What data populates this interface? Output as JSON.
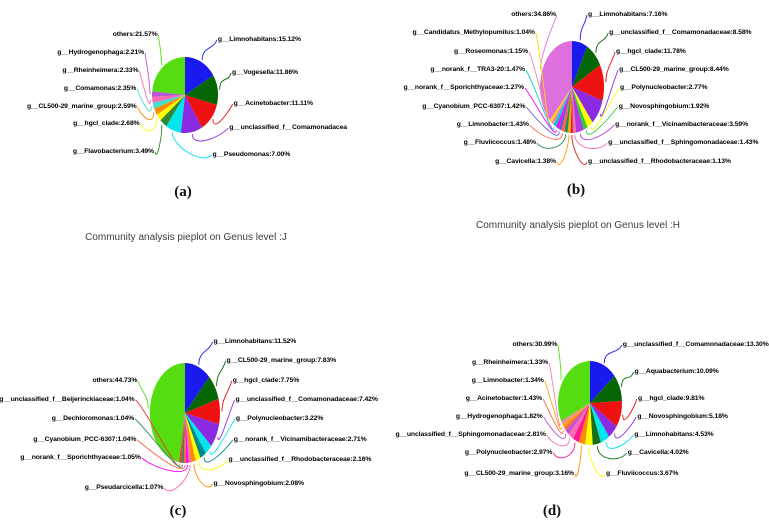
{
  "chart_data": [
    {
      "type": "pie",
      "panel": "a",
      "caption": "(a)",
      "subtitle": "Community analysis pieplot on Genus level :J",
      "slices": [
        {
          "name": "g__Limnohabitans",
          "label": "g__Limnohabitans:15.12%",
          "value": 15.12,
          "color": "#1a1aee",
          "side": "right"
        },
        {
          "name": "g__Vogesella",
          "label": "g__Vogesella:11.86%",
          "value": 11.86,
          "color": "#066606",
          "side": "right"
        },
        {
          "name": "g__Acinetobacter",
          "label": "g__Acinetobacter:11.11%",
          "value": 11.11,
          "color": "#ee1111",
          "side": "right"
        },
        {
          "name": "g__unclassified_f__Comamonadacea",
          "label": "g__unclassified_f__Comamonadacea",
          "value": 9.9,
          "color": "#8a2be2",
          "side": "right"
        },
        {
          "name": "g__Pseudomonas",
          "label": "g__Pseudomonas:7.00%",
          "value": 7.0,
          "color": "#00e5ee",
          "side": "right"
        },
        {
          "name": "g__Flavobacterium",
          "label": "g__Flavobacterium:3.49%",
          "value": 3.49,
          "color": "#2e8b2e",
          "side": "left"
        },
        {
          "name": "g__hgcI_clade",
          "label": "g__hgcI_clade:2.68%",
          "value": 2.68,
          "color": "#ffff00",
          "side": "left"
        },
        {
          "name": "g__CL500-29_marine_group",
          "label": "g__CL500-29_marine_group:2.59%",
          "value": 2.59,
          "color": "#ff8c00",
          "side": "left"
        },
        {
          "name": "g__Comamonas",
          "label": "g__Comamonas:2.35%",
          "value": 2.35,
          "color": "#40e0d0",
          "side": "left"
        },
        {
          "name": "g__Rheinheimera",
          "label": "g__Rheinheimera:2.33%",
          "value": 2.33,
          "color": "#ff69b4",
          "side": "left"
        },
        {
          "name": "g__Hydrogenophaga",
          "label": "g__Hydrogenophaga:2.21%",
          "value": 2.21,
          "color": "#ba55d3",
          "side": "left"
        },
        {
          "name": "others",
          "label": "others:21.57%",
          "value": 21.57,
          "color": "#55dd11",
          "side": "left"
        }
      ]
    },
    {
      "type": "pie",
      "panel": "b",
      "caption": "(b)",
      "subtitle": "Community analysis pieplot on Genus level :H",
      "slices": [
        {
          "name": "g__Limnohabitans",
          "label": "g__Limnohabitans:7.16%",
          "value": 7.16,
          "color": "#1a1aee",
          "side": "right"
        },
        {
          "name": "g__unclassified_f__Comamonadaceae",
          "label": "g__unclassified_f__Comamonadaceae:8.58%",
          "value": 8.58,
          "color": "#066606",
          "side": "right"
        },
        {
          "name": "g__hgcI_clade",
          "label": "g__hgcI_clade:11.78%",
          "value": 11.78,
          "color": "#ee1111",
          "side": "right"
        },
        {
          "name": "g__CL500-29_marine_group",
          "label": "g__CL500-29_marine_group:8.44%",
          "value": 8.44,
          "color": "#8a2be2",
          "side": "right"
        },
        {
          "name": "g__Polynucleobacter",
          "label": "g__Polynucleobacter:2.77%",
          "value": 2.77,
          "color": "#ffff00",
          "side": "right"
        },
        {
          "name": "g__Novosphingobium",
          "label": "g__Novosphingobium:1.92%",
          "value": 1.92,
          "color": "#32cd32",
          "side": "right"
        },
        {
          "name": "g__norank_f__Vicinamibacteraceae",
          "label": "g__norank_f__Vicinamibacteraceae:3.59%",
          "value": 3.59,
          "color": "#b03ae2",
          "side": "right"
        },
        {
          "name": "g__unclassified_f__Sphingomonadaceae",
          "label": "g__unclassified_f__Sphingomonadaceae:1.43%",
          "value": 1.43,
          "color": "#ff69b4",
          "side": "right"
        },
        {
          "name": "g__unclassified_f__Rhodobacteraceae",
          "label": "g__unclassified_f__Rhodobacteraceae:1.13%",
          "value": 1.13,
          "color": "#cd2626",
          "side": "right"
        },
        {
          "name": "g__Cavicella",
          "label": "g__Cavicella:1.38%",
          "value": 1.38,
          "color": "#ffa500",
          "side": "left"
        },
        {
          "name": "g__Fluviicoccus",
          "label": "g__Fluviicoccus:1.48%",
          "value": 1.48,
          "color": "#2e8b57",
          "side": "left"
        },
        {
          "name": "g__Limnobacter",
          "label": "g__Limnobacter:1.43%",
          "value": 1.43,
          "color": "#ff6347",
          "side": "left"
        },
        {
          "name": "g__Cyanobium_PCC-6307",
          "label": "g__Cyanobium_PCC-6307:1.42%",
          "value": 1.42,
          "color": "#6a5acd",
          "side": "left"
        },
        {
          "name": "g__norank_f__Sporichthyaceae",
          "label": "g__norank_f__Sporichthyaceae:1.27%",
          "value": 1.27,
          "color": "#ff00ff",
          "side": "left"
        },
        {
          "name": "g__norank_f__TRA3-20",
          "label": "g__norank_f__TRA3-20:1.47%",
          "value": 1.47,
          "color": "#00ced1",
          "side": "left"
        },
        {
          "name": "g__Roseomonas",
          "label": "g__Roseomonas:1.15%",
          "value": 1.15,
          "color": "#ff82ab",
          "side": "left"
        },
        {
          "name": "g__Candidatus_Methylopumilus",
          "label": "g__Candidatus_Methylopumilus:1.04%",
          "value": 1.04,
          "color": "#ffd700",
          "side": "left"
        },
        {
          "name": "others",
          "label": "others:34.86%",
          "value": 34.86,
          "color": "#dd70dd",
          "side": "left"
        }
      ]
    },
    {
      "type": "pie",
      "panel": "c",
      "caption": "(c)",
      "slices": [
        {
          "name": "g__Limnohabitans",
          "label": "g__Limnohabitans:11.52%",
          "value": 11.52,
          "color": "#1a1aee",
          "side": "right"
        },
        {
          "name": "g__CL500-29_marine_group",
          "label": "g__CL500-29_marine_group:7.83%",
          "value": 7.83,
          "color": "#066606",
          "side": "right"
        },
        {
          "name": "g__hgcI_clade",
          "label": "g__hgcI_clade:7.75%",
          "value": 7.75,
          "color": "#ee1111",
          "side": "right"
        },
        {
          "name": "g__unclassified_f__Comamonadaceae",
          "label": "g__unclassified_f__Comamonadaceae:7.42%",
          "value": 7.42,
          "color": "#8a2be2",
          "side": "right"
        },
        {
          "name": "g__Polynucleobacter",
          "label": "g__Polynucleobacter:3.22%",
          "value": 3.22,
          "color": "#00e5ee",
          "side": "right"
        },
        {
          "name": "g__norank_f__Vicinamibacteraceae",
          "label": "g__norank_f__Vicinamibacteraceae:2.71%",
          "value": 2.71,
          "color": "#008b8b",
          "side": "right"
        },
        {
          "name": "g__unclassified_f__Rhodobacteraceae",
          "label": "g__unclassified_f__Rhodobacteraceae:2.16%",
          "value": 2.16,
          "color": "#ffff00",
          "side": "right"
        },
        {
          "name": "g__Novosphingobium",
          "label": "g__Novosphingobium:2.08%",
          "value": 2.08,
          "color": "#ff8c00",
          "side": "right"
        },
        {
          "name": "g__Pseudarcicella",
          "label": "g__Pseudarcicella:1.07%",
          "value": 1.07,
          "color": "#ff69b4",
          "side": "left"
        },
        {
          "name": "g__norank_f__Sporichthyaceae",
          "label": "g__norank_f__Sporichthyaceae:1.05%",
          "value": 1.05,
          "color": "#ff00ff",
          "side": "left"
        },
        {
          "name": "g__Cyanobium_PCC-6307",
          "label": "g__Cyanobium_PCC-6307:1.04%",
          "value": 1.04,
          "color": "#ff6347",
          "side": "left"
        },
        {
          "name": "g__Dechloromonas",
          "label": "g__Dechloromonas:1.04%",
          "value": 1.04,
          "color": "#2e8b57",
          "side": "left"
        },
        {
          "name": "g__unclassified_f__Beijerinckiaceae",
          "label": "g__unclassified_f__Beijerinckiaceae:1.04%",
          "value": 1.04,
          "color": "#ee3b3b",
          "side": "left"
        },
        {
          "name": "others",
          "label": "others:44.73%",
          "value": 44.73,
          "color": "#55dd11",
          "side": "left"
        }
      ]
    },
    {
      "type": "pie",
      "panel": "d",
      "caption": "(d)",
      "slices": [
        {
          "name": "g__unclassified_f__Comamonadaceae",
          "label": "g__unclassified_f__Comamonadaceae:13.30%",
          "value": 13.3,
          "color": "#1a1aee",
          "side": "right"
        },
        {
          "name": "g__Aquabacterium",
          "label": "g__Aquabacterium:10.09%",
          "value": 10.09,
          "color": "#066606",
          "side": "right"
        },
        {
          "name": "g__hgcI_clade",
          "label": "g__hgcI_clade:9.81%",
          "value": 9.81,
          "color": "#ee1111",
          "side": "right"
        },
        {
          "name": "g__Novosphingobium",
          "label": "g__Novosphingobium:5.18%",
          "value": 5.18,
          "color": "#8a2be2",
          "side": "right"
        },
        {
          "name": "g__Limnohabitans",
          "label": "g__Limnohabitans:4.53%",
          "value": 4.53,
          "color": "#00e5ee",
          "side": "right"
        },
        {
          "name": "g__Cavicella",
          "label": "g__Cavicella:4.02%",
          "value": 4.02,
          "color": "#157015",
          "side": "right"
        },
        {
          "name": "g__Fluviicoccus",
          "label": "g__Fluviicoccus:3.67%",
          "value": 3.67,
          "color": "#ffff00",
          "side": "right"
        },
        {
          "name": "g__CL500-29_marine_group",
          "label": "g__CL500-29_marine_group:3.16%",
          "value": 3.16,
          "color": "#ff8c00",
          "side": "left"
        },
        {
          "name": "g__Polynucleobacter",
          "label": "g__Polynucleobacter:2.97%",
          "value": 2.97,
          "color": "#ff1493",
          "side": "left"
        },
        {
          "name": "g__unclassified_f__Sphingomonadaceae",
          "label": "g__unclassified_f__Sphingomonadaceae:2.81%",
          "value": 2.81,
          "color": "#ff69b4",
          "side": "left"
        },
        {
          "name": "g__Hydrogenophaga",
          "label": "g__Hydrogenophaga:1.82%",
          "value": 1.82,
          "color": "#ba55d3",
          "side": "left"
        },
        {
          "name": "g__Acinetobacter",
          "label": "g__Acinetobacter:1.43%",
          "value": 1.43,
          "color": "#ff6347",
          "side": "left"
        },
        {
          "name": "g__Limnobacter",
          "label": "g__Limnobacter:1.34%",
          "value": 1.34,
          "color": "#ffa500",
          "side": "left"
        },
        {
          "name": "g__Rheinheimera",
          "label": "g__Rheinheimera:1.33%",
          "value": 1.33,
          "color": "#ff82ab",
          "side": "left"
        },
        {
          "name": "others",
          "label": "others:30.99%",
          "value": 30.99,
          "color": "#55dd11",
          "side": "left"
        }
      ]
    }
  ]
}
